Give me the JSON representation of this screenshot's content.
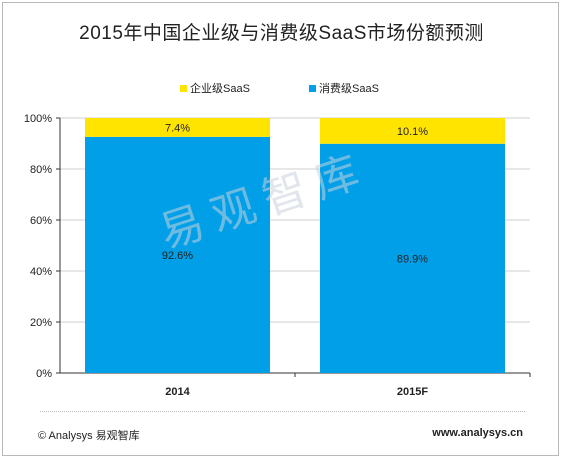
{
  "title": "2015年中国企业级与消费级SaaS市场份额预测",
  "colors": {
    "enterprise": "#ffe400",
    "consumer": "#009fe8",
    "gridline": "#cfcfcf",
    "axis": "#333333"
  },
  "watermark": "易观智库",
  "footer": {
    "left": "© Analysys 易观智库",
    "right": "www.analysys.cn"
  },
  "chart_data": {
    "type": "bar",
    "stacked": true,
    "categories": [
      "2014",
      "2015F"
    ],
    "series": [
      {
        "name": "消费级SaaS",
        "values": [
          92.6,
          89.9
        ],
        "labels": [
          "92.6%",
          "89.9%"
        ]
      },
      {
        "name": "企业级SaaS",
        "values": [
          7.4,
          10.1
        ],
        "labels": [
          "7.4%",
          "10.1%"
        ]
      }
    ],
    "legend_order": [
      "企业级SaaS",
      "消费级SaaS"
    ],
    "yticks": [
      "0%",
      "20%",
      "40%",
      "60%",
      "80%",
      "100%"
    ],
    "ylim": [
      0,
      100
    ],
    "grid": true,
    "legend_position": "top"
  }
}
